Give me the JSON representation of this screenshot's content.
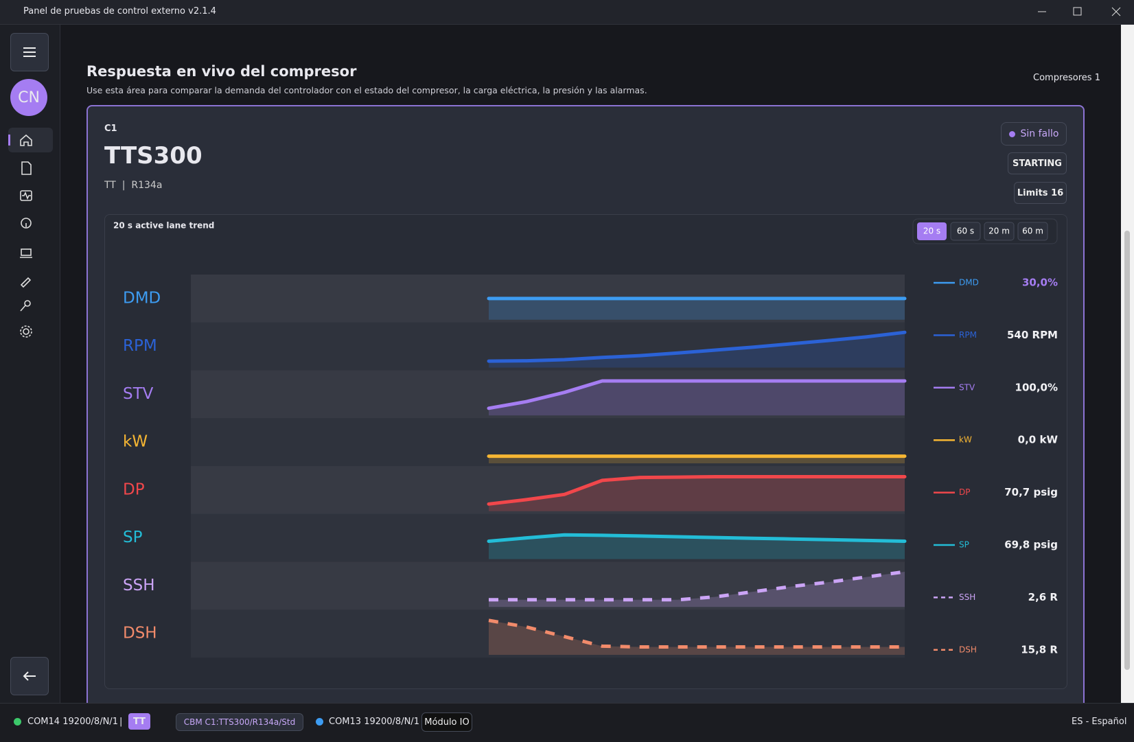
{
  "window": {
    "title": "Panel de pruebas de control externo v2.1.4"
  },
  "sidebar": {
    "avatar": "CN"
  },
  "header": {
    "title": "Respuesta en vivo del compresor",
    "subtitle": "Use esta área para comparar la demanda del controlador con el estado del compresor, la carga eléctrica, la presión y las alarmas.",
    "right": "Compresores 1"
  },
  "card": {
    "id": "C1",
    "model": "TTS300",
    "meta": "TT  |  R134a",
    "fault": "Sin fallo",
    "state": "STARTING",
    "limits": "Limits 16"
  },
  "chart_data": {
    "type": "line",
    "title": "20 s active lane trend",
    "ranges": [
      "20 s",
      "60 s",
      "20 m",
      "60 m"
    ],
    "active_range": 0,
    "ylim": [
      0,
      100
    ],
    "series": [
      {
        "name": "DMD",
        "color": "#3d9cf2",
        "dash": false,
        "readout": "30,0%",
        "values": [
          50,
          50,
          50,
          50,
          50,
          50,
          50,
          50,
          50,
          50,
          50,
          50
        ]
      },
      {
        "name": "RPM",
        "color": "#2b62d6",
        "dash": false,
        "readout": "540 RPM",
        "values": [
          10,
          11,
          14,
          20,
          25,
          32,
          40,
          48,
          57,
          66,
          76,
          88
        ]
      },
      {
        "name": "STV",
        "color": "#a57df2",
        "dash": false,
        "readout": "100,0%",
        "values": [
          12,
          30,
          55,
          86,
          86,
          86,
          86,
          86,
          86,
          86,
          86,
          86
        ]
      },
      {
        "name": "kW",
        "color": "#f6b633",
        "dash": false,
        "readout": "0,0 kW",
        "values": [
          12,
          12,
          12,
          12,
          12,
          12,
          12,
          12,
          12,
          12,
          12,
          12
        ]
      },
      {
        "name": "DP",
        "color": "#f1474b",
        "dash": false,
        "readout": "70,7 psig",
        "values": [
          12,
          24,
          38,
          76,
          84,
          85,
          86,
          86,
          86,
          86,
          86,
          86
        ]
      },
      {
        "name": "SP",
        "color": "#23bdd7",
        "dash": false,
        "readout": "69,8 psig",
        "values": [
          41,
          50,
          58,
          57,
          55,
          53,
          51,
          49,
          47,
          45,
          43,
          41
        ]
      },
      {
        "name": "SSH",
        "color": "#cba4f6",
        "dash": true,
        "readout": "2,6 R",
        "values": [
          12,
          12,
          12,
          12,
          12,
          12,
          20,
          34,
          48,
          60,
          74,
          88
        ]
      },
      {
        "name": "DSH",
        "color": "#f28b6b",
        "dash": true,
        "readout": "15,8 R",
        "values": [
          86,
          68,
          42,
          16,
          14,
          14,
          14,
          14,
          14,
          14,
          14,
          14
        ]
      }
    ]
  },
  "status_bar": {
    "port1": "COM14 19200/8/N/1",
    "sep": "|",
    "tag": "TT",
    "cbm": "CBM C1:TTS300/R134a/Std",
    "port2": "COM13 19200/8/N/1",
    "module": "Módulo IO",
    "lang": "ES - Español"
  }
}
